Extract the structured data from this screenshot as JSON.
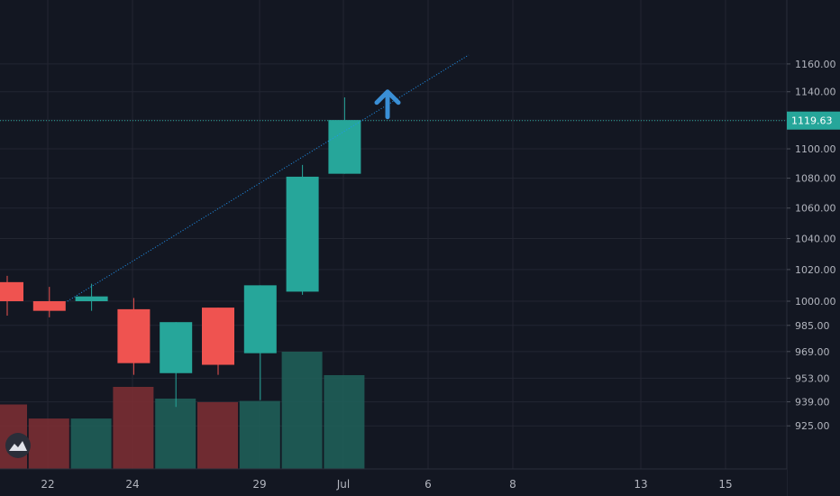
{
  "theme": {
    "background": "#131722",
    "grid": "#232632",
    "axis_text": "#b2b5be",
    "up_color": "#26a69a",
    "down_color": "#ef5350",
    "volume_up": "#1f5e58",
    "volume_down": "#7a2e33",
    "price_line": "#26a69a",
    "trendline": "#2196f3",
    "arrow": "#3a8fd6",
    "price_tag_bg": "#26a69a"
  },
  "icons": {
    "logo": "tradingview-mountains-icon",
    "signal": "arrow-up-icon"
  },
  "chart_data": {
    "type": "candlestick",
    "y_axis_position": "right",
    "price_scale": "logarithmic",
    "ylim": [
      918,
      1166
    ],
    "y_ticks": [
      {
        "value": 925,
        "label": "925.00"
      },
      {
        "value": 939,
        "label": "939.00"
      },
      {
        "value": 953,
        "label": "953.00"
      },
      {
        "value": 969,
        "label": "969.00"
      },
      {
        "value": 985,
        "label": "985.00"
      },
      {
        "value": 1000,
        "label": "1000.00"
      },
      {
        "value": 1020,
        "label": "1020.00"
      },
      {
        "value": 1040,
        "label": "1040.00"
      },
      {
        "value": 1060,
        "label": "1060.00"
      },
      {
        "value": 1080,
        "label": "1080.00"
      },
      {
        "value": 1100,
        "label": "1100.00"
      },
      {
        "value": 1120,
        "label": "1120.00"
      },
      {
        "value": 1140,
        "label": "1140.00"
      },
      {
        "value": 1160,
        "label": "1160.00"
      }
    ],
    "current_price": {
      "value": 1119.63,
      "label": "1119.63"
    },
    "x_labels": [
      "22",
      "24",
      "29",
      "Jul",
      "6",
      "8",
      "13",
      "15"
    ],
    "candles": [
      {
        "open": 1012,
        "high": 1016,
        "low": 991,
        "close": 1000
      },
      {
        "open": 1000,
        "high": 1009,
        "low": 990,
        "close": 994
      },
      {
        "open": 1000,
        "high": 1011,
        "low": 994,
        "close": 1003
      },
      {
        "open": 995,
        "high": 1002,
        "low": 955,
        "close": 962
      },
      {
        "open": 956,
        "high": 987,
        "low": 936,
        "close": 987
      },
      {
        "open": 996,
        "high": 996,
        "low": 955,
        "close": 961
      },
      {
        "open": 968,
        "high": 1010,
        "low": 940,
        "close": 1010
      },
      {
        "open": 1006,
        "high": 1089,
        "low": 1004,
        "close": 1081
      },
      {
        "open": 1083,
        "high": 1136,
        "low": 1083,
        "close": 1120
      }
    ],
    "volume": [
      {
        "value": 0.55,
        "up": false
      },
      {
        "value": 0.43,
        "up": false
      },
      {
        "value": 0.43,
        "up": true
      },
      {
        "value": 0.7,
        "up": false
      },
      {
        "value": 0.6,
        "up": true
      },
      {
        "value": 0.57,
        "up": false
      },
      {
        "value": 0.58,
        "up": true
      },
      {
        "value": 1.0,
        "up": true
      },
      {
        "value": 0.8,
        "up": true
      }
    ],
    "trendline": {
      "start_candle": 1,
      "start_price": 1000,
      "end_candle": 8,
      "end_price": 1120
    },
    "signal_arrow": {
      "direction": "up",
      "price": 1140
    }
  }
}
